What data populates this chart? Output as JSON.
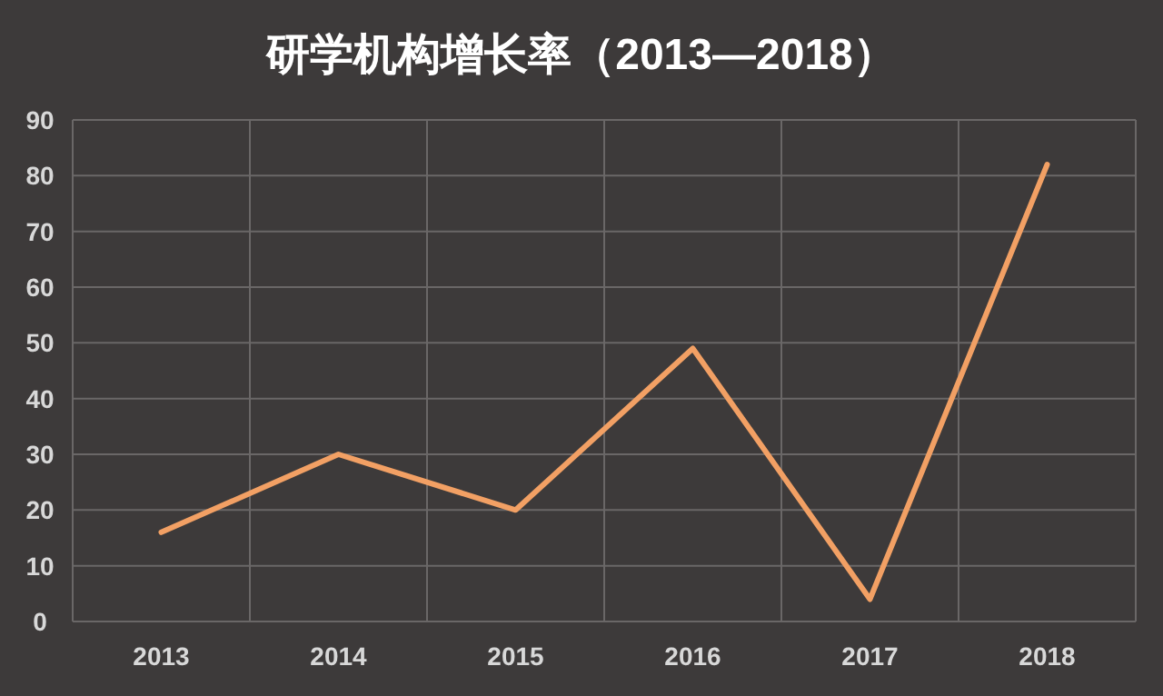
{
  "chart_data": {
    "type": "line",
    "title": "研学机构增长率（2013—2018）",
    "categories": [
      "2013",
      "2014",
      "2015",
      "2016",
      "2017",
      "2018"
    ],
    "values": [
      16,
      30,
      20,
      49,
      4,
      82
    ],
    "color": "#f2a064",
    "ylim": [
      0,
      90
    ],
    "yticks": [
      0,
      10,
      20,
      30,
      40,
      50,
      60,
      70,
      80,
      90
    ],
    "grid": true
  }
}
